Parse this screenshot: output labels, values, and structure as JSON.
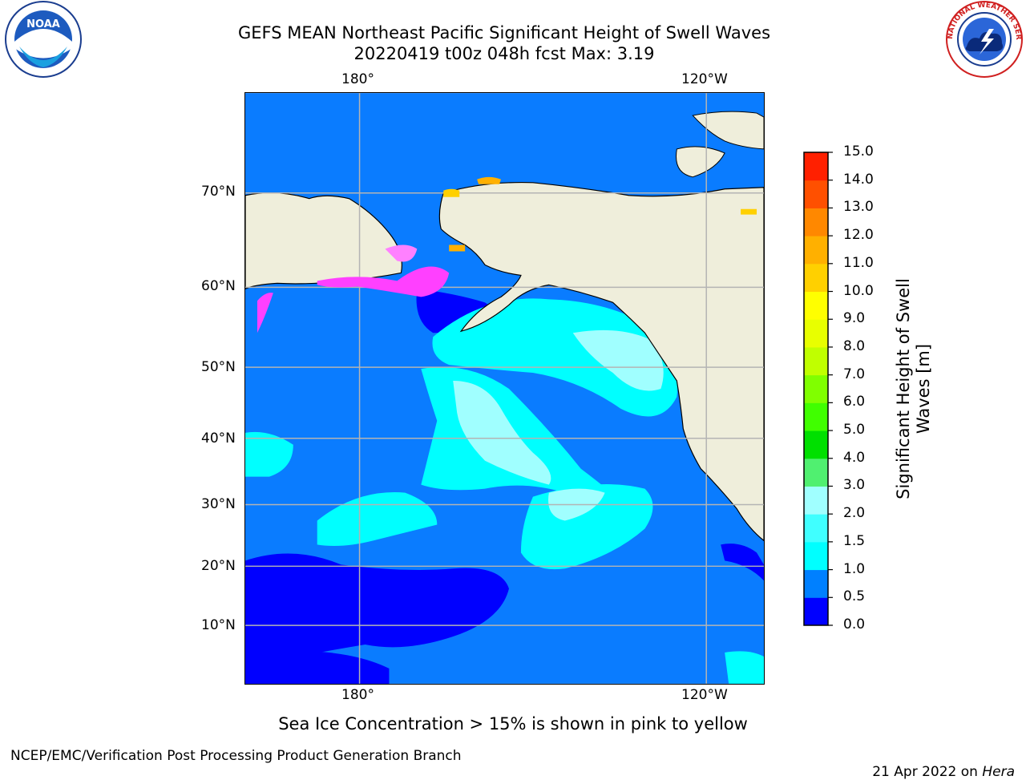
{
  "header": {
    "title_line1": "GEFS MEAN Northeast Pacific Significant Height of Swell Waves",
    "title_line2": "20220419 t00z 048h fcst   Max: 3.19"
  },
  "logos": {
    "noaa_text": "NOAA",
    "nws_ring_text": "NATIONAL WEATHER SERVICE"
  },
  "map": {
    "lon_ticks_top": [
      "180°",
      "120°W"
    ],
    "lon_ticks_bottom": [
      "180°",
      "120°W"
    ],
    "lat_ticks": [
      "70°N",
      "60°N",
      "50°N",
      "40°N",
      "30°N",
      "20°N",
      "10°N"
    ],
    "land_color": "#efeedb",
    "ocean_color": "#0a7cff",
    "gridline_color": "#b4b4b4"
  },
  "colorbar": {
    "label_line1": "Significant Height of Swell",
    "label_line2": "Waves [m]",
    "levels": [
      "0.0",
      "0.5",
      "1.0",
      "1.5",
      "2.0",
      "3.0",
      "4.0",
      "5.0",
      "6.0",
      "7.0",
      "8.0",
      "9.0",
      "10.0",
      "11.0",
      "12.0",
      "13.0",
      "14.0",
      "15.0"
    ],
    "colors": [
      "#0000ff",
      "#0080ff",
      "#00ffff",
      "#40ffff",
      "#a0ffff",
      "#50f070",
      "#00e000",
      "#40ff00",
      "#80ff00",
      "#c0ff00",
      "#e8ff00",
      "#ffff00",
      "#ffd000",
      "#ffb000",
      "#ff8800",
      "#ff5000",
      "#ff2000"
    ]
  },
  "notes": {
    "sea_ice": "Sea Ice Concentration > 15% is shown in pink to yellow"
  },
  "footer": {
    "left": "NCEP/EMC/Verification Post Processing Product Generation Branch",
    "date": "21 Apr 2022 on ",
    "machine": "Hera"
  }
}
